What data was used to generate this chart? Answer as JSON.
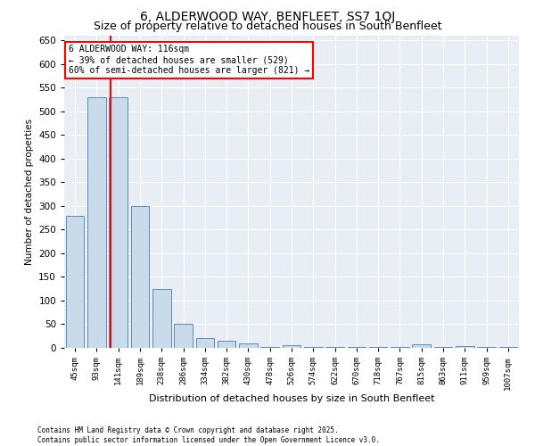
{
  "title": "6, ALDERWOOD WAY, BENFLEET, SS7 1QJ",
  "subtitle": "Size of property relative to detached houses in South Benfleet",
  "xlabel": "Distribution of detached houses by size in South Benfleet",
  "ylabel": "Number of detached properties",
  "bar_color": "#c9daea",
  "bar_edge_color": "#5b8db8",
  "bins": [
    "45sqm",
    "93sqm",
    "141sqm",
    "189sqm",
    "238sqm",
    "286sqm",
    "334sqm",
    "382sqm",
    "430sqm",
    "478sqm",
    "526sqm",
    "574sqm",
    "622sqm",
    "670sqm",
    "718sqm",
    "767sqm",
    "815sqm",
    "863sqm",
    "911sqm",
    "959sqm",
    "1007sqm"
  ],
  "values": [
    280,
    530,
    530,
    300,
    125,
    50,
    20,
    15,
    10,
    2,
    5,
    1,
    2,
    1,
    1,
    1,
    8,
    1,
    4,
    2,
    2
  ],
  "red_line_x": 1.65,
  "annotation_title": "6 ALDERWOOD WAY: 116sqm",
  "annotation_line1": "← 39% of detached houses are smaller (529)",
  "annotation_line2": "60% of semi-detached houses are larger (821) →",
  "footer1": "Contains HM Land Registry data © Crown copyright and database right 2025.",
  "footer2": "Contains public sector information licensed under the Open Government Licence v3.0.",
  "ylim": [
    0,
    660
  ],
  "yticks": [
    0,
    50,
    100,
    150,
    200,
    250,
    300,
    350,
    400,
    450,
    500,
    550,
    600,
    650
  ],
  "bg_color": "#ffffff",
  "plot_bg_color": "#e8eef4",
  "grid_color": "#ffffff",
  "title_fontsize": 10,
  "subtitle_fontsize": 9
}
